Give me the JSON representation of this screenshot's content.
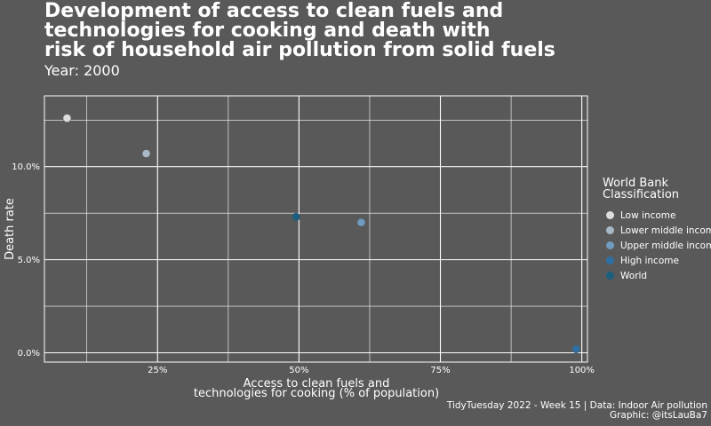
{
  "chart_data": {
    "type": "scatter",
    "title_lines": [
      "Development of access to clean fuels and",
      "technologies for cooking and death with",
      "risk of household air pollution from solid fuels"
    ],
    "subtitle": "Year: 2000",
    "xlabel_lines": [
      "Access to clean fuels and",
      "technologies for cooking (% of population)"
    ],
    "ylabel": "Death rate",
    "xlim": [
      0.05,
      1.01
    ],
    "ylim": [
      -0.005,
      0.138
    ],
    "x_ticks": [
      {
        "value": 0.25,
        "label": "25%"
      },
      {
        "value": 0.5,
        "label": "50%"
      },
      {
        "value": 0.75,
        "label": "75%"
      },
      {
        "value": 1.0,
        "label": "100%"
      }
    ],
    "y_ticks": [
      {
        "value": 0.0,
        "label": "0.0%"
      },
      {
        "value": 0.05,
        "label": "5.0%"
      },
      {
        "value": 0.1,
        "label": "10.0%"
      }
    ],
    "grid": true,
    "legend_position": "right",
    "legend_title_lines": [
      "World Bank",
      "Classification"
    ],
    "series": [
      {
        "name": "Low income",
        "color": "#dddddd",
        "points": [
          {
            "x": 0.09,
            "y": 0.126
          }
        ]
      },
      {
        "name": "Lower middle income",
        "color": "#a9b8c6",
        "points": [
          {
            "x": 0.23,
            "y": 0.107
          }
        ]
      },
      {
        "name": "Upper middle income",
        "color": "#6f9cc0",
        "points": [
          {
            "x": 0.61,
            "y": 0.07
          }
        ]
      },
      {
        "name": "High income",
        "color": "#2f6ea3",
        "points": [
          {
            "x": 0.99,
            "y": 0.002
          }
        ]
      },
      {
        "name": "World",
        "color": "#1b5e7e",
        "points": [
          {
            "x": 0.495,
            "y": 0.073
          }
        ]
      }
    ]
  },
  "caption_lines": [
    "TidyTuesday 2022 - Week 15 | Data: Indoor Air pollution",
    "Graphic: @itsLauBa7"
  ]
}
